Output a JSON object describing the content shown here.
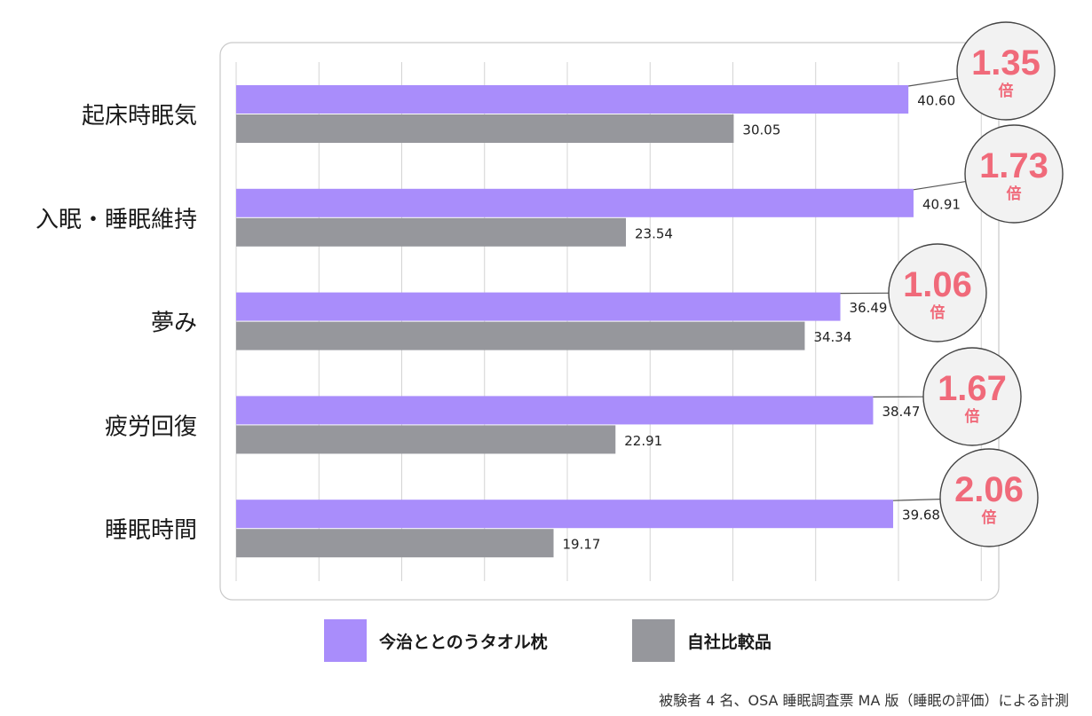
{
  "chart_data": {
    "type": "bar",
    "orientation": "horizontal",
    "categories": [
      "起床時眠気",
      "入眠・睡眠維持",
      "夢み",
      "疲労回復",
      "睡眠時間"
    ],
    "series": [
      {
        "name": "今治ととのうタオル枕",
        "values": [
          40.6,
          40.91,
          36.49,
          38.47,
          39.68
        ],
        "labels": [
          "40.60",
          "40.91",
          "36.49",
          "38.47",
          "39.68"
        ],
        "color": "#a98dfb"
      },
      {
        "name": "自社比較品",
        "values": [
          30.05,
          23.54,
          34.34,
          22.91,
          19.17
        ],
        "labels": [
          "30.05",
          "23.54",
          "34.34",
          "22.91",
          "19.17"
        ],
        "color": "#96979c"
      }
    ],
    "ratios": [
      "1.35",
      "1.73",
      "1.06",
      "1.67",
      "2.06"
    ],
    "ratio_unit": "倍",
    "ratio_color": "#f06a7a",
    "xlim": [
      0,
      45
    ],
    "grid": true,
    "legend_position": "bottom"
  },
  "footnote": "被験者 4 名、OSA 睡眠調査票 MA 版（睡眠の評価）による計測"
}
